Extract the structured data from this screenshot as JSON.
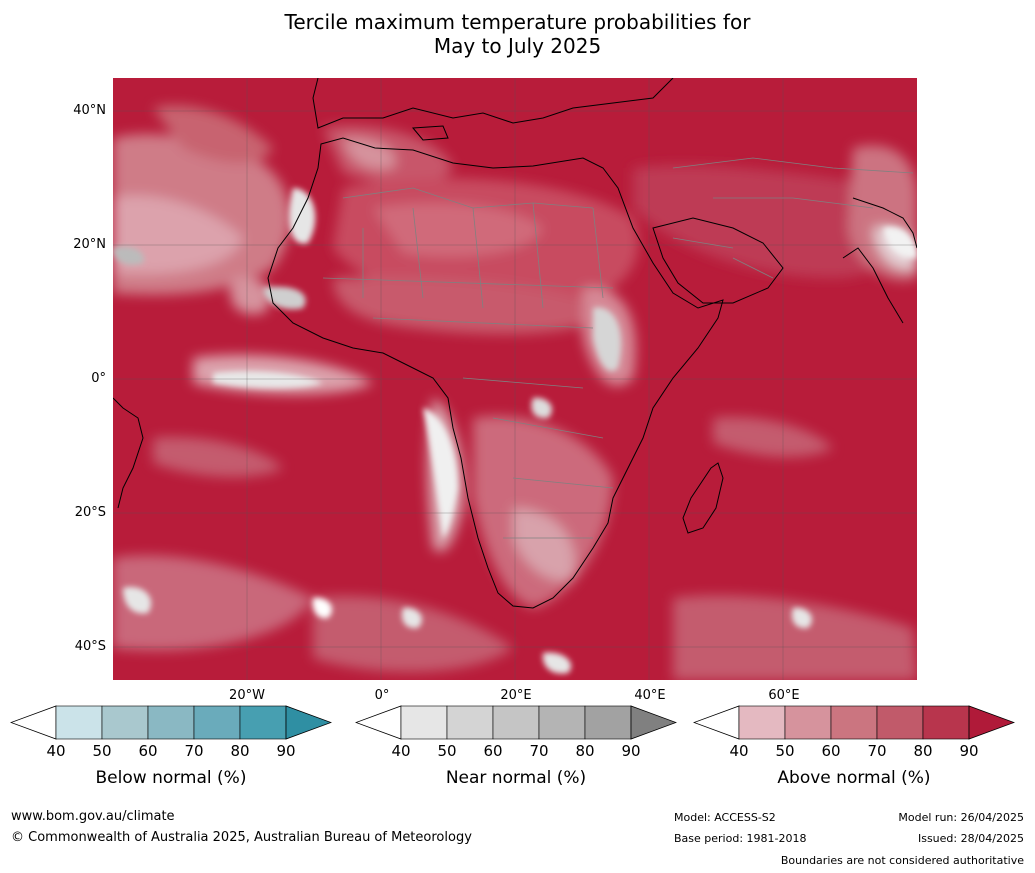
{
  "title_line1": "Tercile maximum temperature probabilities for",
  "title_line2": "May to July 2025",
  "map": {
    "lat_labels": [
      "40°N",
      "20°N",
      "0°",
      "20°S",
      "40°S"
    ],
    "lon_labels": [
      "20°W",
      "0°",
      "20°E",
      "40°E",
      "60°E"
    ],
    "ocean_color": "#b81c3a",
    "land_color": "#c03b52",
    "coast_color": "#000000",
    "border_color": "#808080"
  },
  "legends": [
    {
      "name": "Below normal (%)",
      "ticks": [
        "40",
        "50",
        "60",
        "70",
        "80",
        "90"
      ],
      "colors": [
        "#ffffff",
        "#cbe3e9",
        "#a9c8ce",
        "#8ab8c3",
        "#6aabbb",
        "#479fb1",
        "#2f8fa3"
      ]
    },
    {
      "name": "Near normal (%)",
      "ticks": [
        "40",
        "50",
        "60",
        "70",
        "80",
        "90"
      ],
      "colors": [
        "#ffffff",
        "#e6e6e6",
        "#d4d4d4",
        "#c5c5c5",
        "#b4b4b4",
        "#a2a2a2",
        "#808080"
      ]
    },
    {
      "name": "Above normal (%)",
      "ticks": [
        "40",
        "50",
        "60",
        "70",
        "80",
        "90"
      ],
      "colors": [
        "#ffffff",
        "#e4b9c1",
        "#d6939d",
        "#cb7580",
        "#c15a6a",
        "#b8354d",
        "#b01a39"
      ]
    }
  ],
  "footer": {
    "url": "www.bom.gov.au/climate",
    "copyright": "© Commonwealth of Australia 2025, Australian Bureau of Meteorology",
    "model": "Model: ACCESS-S2",
    "base_period": "Base period: 1981-2018",
    "model_run": "Model run: 26/04/2025",
    "issued": "Issued: 28/04/2025",
    "boundaries": "Boundaries are not considered authoritative"
  }
}
